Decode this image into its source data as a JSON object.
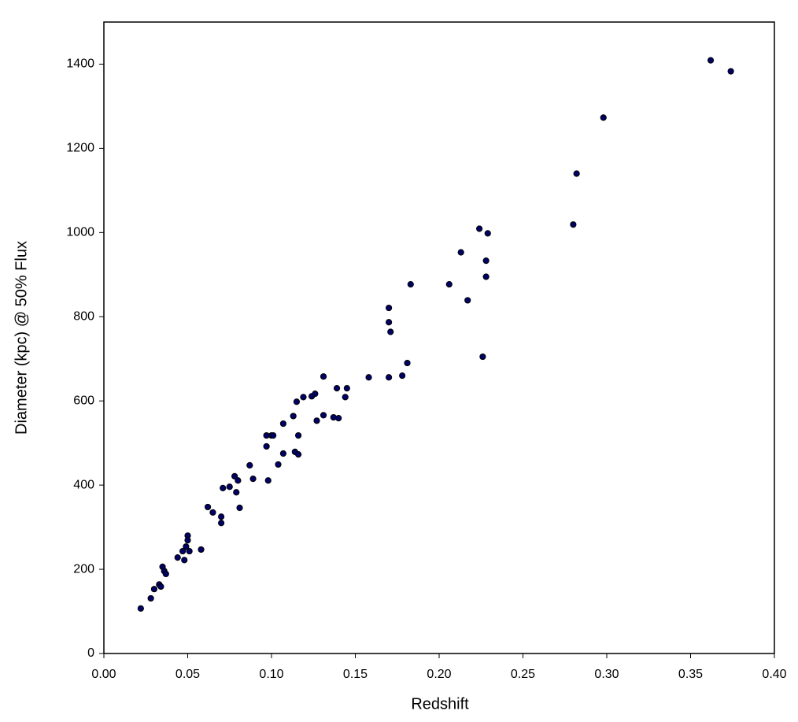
{
  "chart_data": {
    "type": "scatter",
    "x_label": "Redshift",
    "y_label": "Diameter (kpc) @ 50% Flux",
    "color": "#000066",
    "xlim": [
      0,
      0.4
    ],
    "ylim": [
      0,
      1500
    ],
    "xticks": [
      {
        "value": 0,
        "label": "0.00"
      },
      {
        "value": 0.05,
        "label": "0.05"
      },
      {
        "value": 0.1,
        "label": "0.10"
      },
      {
        "value": 0.15,
        "label": "0.15"
      },
      {
        "value": 0.2,
        "label": "0.20"
      },
      {
        "value": 0.25,
        "label": "0.25"
      },
      {
        "value": 0.3,
        "label": "0.30"
      },
      {
        "value": 0.35,
        "label": "0.35"
      },
      {
        "value": 0.4,
        "label": "0.40"
      }
    ],
    "yticks": [
      0,
      200,
      400,
      600,
      800,
      1000,
      1200,
      1400
    ],
    "x": [
      0.022,
      0.028,
      0.03,
      0.033,
      0.034,
      0.035,
      0.036,
      0.037,
      0.044,
      0.047,
      0.048,
      0.049,
      0.05,
      0.05,
      0.051,
      0.058,
      0.062,
      0.065,
      0.07,
      0.07,
      0.071,
      0.075,
      0.078,
      0.079,
      0.08,
      0.081,
      0.087,
      0.089,
      0.097,
      0.097,
      0.098,
      0.1,
      0.101,
      0.104,
      0.107,
      0.107,
      0.113,
      0.114,
      0.115,
      0.116,
      0.116,
      0.119,
      0.124,
      0.126,
      0.127,
      0.131,
      0.131,
      0.137,
      0.139,
      0.14,
      0.144,
      0.145,
      0.158,
      0.17,
      0.17,
      0.17,
      0.171,
      0.178,
      0.181,
      0.183,
      0.206,
      0.213,
      0.217,
      0.224,
      0.226,
      0.228,
      0.228,
      0.229,
      0.28,
      0.282,
      0.298,
      0.362,
      0.374
    ],
    "values": [
      107,
      131,
      153,
      164,
      159,
      206,
      196,
      189,
      228,
      243,
      222,
      254,
      280,
      269,
      243,
      247,
      348,
      335,
      310,
      325,
      393,
      396,
      421,
      383,
      411,
      346,
      447,
      415,
      492,
      518,
      411,
      518,
      518,
      449,
      546,
      475,
      564,
      479,
      598,
      473,
      518,
      609,
      611,
      617,
      553,
      566,
      658,
      561,
      630,
      559,
      609,
      630,
      656,
      656,
      821,
      787,
      764,
      660,
      690,
      877,
      877,
      953,
      839,
      1009,
      705,
      933,
      895,
      998,
      1019,
      1140,
      1273,
      1409,
      1383
    ]
  }
}
